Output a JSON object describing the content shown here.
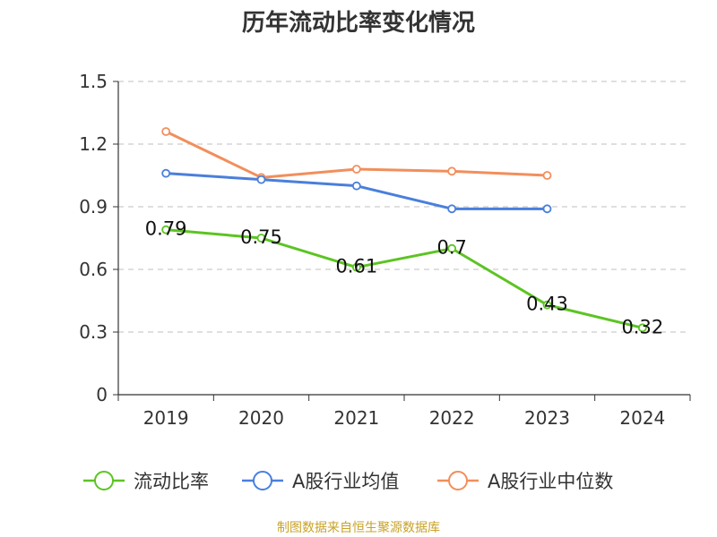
{
  "chart_data": {
    "type": "line",
    "title": "历年流动比率变化情况",
    "categories": [
      "2019",
      "2020",
      "2021",
      "2022",
      "2023",
      "2024"
    ],
    "ylim": [
      0,
      1.5
    ],
    "yticks": [
      "0",
      "0.3",
      "0.6",
      "0.9",
      "1.2",
      "1.5"
    ],
    "grid": true,
    "legend_position": "bottom",
    "series": [
      {
        "name": "流动比率",
        "color": "#5cc422",
        "values": [
          0.79,
          0.75,
          0.61,
          0.7,
          0.43,
          0.32
        ],
        "labels": [
          "0.79",
          "0.75",
          "0.61",
          "0.7",
          "0.43",
          "0.32"
        ]
      },
      {
        "name": "A股行业均值",
        "color": "#4a7fdb",
        "values": [
          1.06,
          1.03,
          1.0,
          0.89,
          0.89,
          null
        ]
      },
      {
        "name": "A股行业中位数",
        "color": "#f28e5c",
        "values": [
          1.26,
          1.04,
          1.08,
          1.07,
          1.05,
          null
        ]
      }
    ]
  },
  "source_text": "制图数据来自恒生聚源数据库"
}
